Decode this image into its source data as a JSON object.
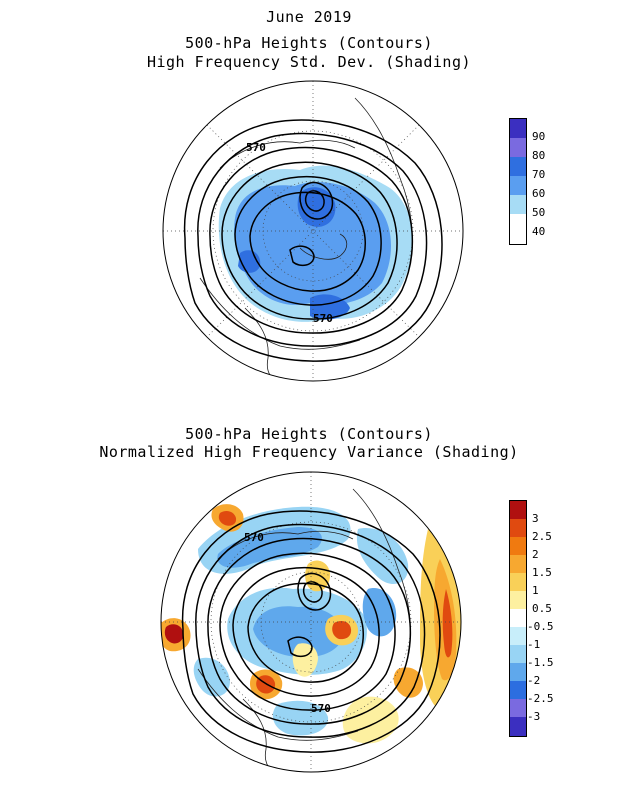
{
  "top": {
    "title_lines": [
      "June 2019",
      "500-hPa Heights (Contours)",
      "High Frequency Std. Dev. (Shading)"
    ],
    "contour_labels": [
      "570",
      "570"
    ],
    "colorbar": {
      "labels": [
        "90",
        "80",
        "70",
        "60",
        "50",
        "40"
      ],
      "colors": [
        "#3b2fc0",
        "#7a6ae0",
        "#2f6fe0",
        "#5a9ef0",
        "#a7dcf5",
        "#ffffff"
      ]
    }
  },
  "bottom": {
    "title_lines": [
      "500-hPa Heights (Contours)",
      "Normalized High Frequency Variance (Shading)"
    ],
    "contour_labels": [
      "570",
      "570"
    ],
    "colorbar": {
      "labels": [
        "3",
        "2.5",
        "2",
        "1.5",
        "1",
        "0.5",
        "-0.5",
        "-1",
        "-1.5",
        "-2",
        "-2.5",
        "-3"
      ],
      "colors": [
        "#b01010",
        "#e04a10",
        "#f07a10",
        "#f7a830",
        "#f9d058",
        "#fdf0a0",
        "#ffffff",
        "#c8eefa",
        "#98d4f4",
        "#5fa8ec",
        "#2c6ee0",
        "#7a6ae0",
        "#3b2fc0"
      ]
    }
  }
}
